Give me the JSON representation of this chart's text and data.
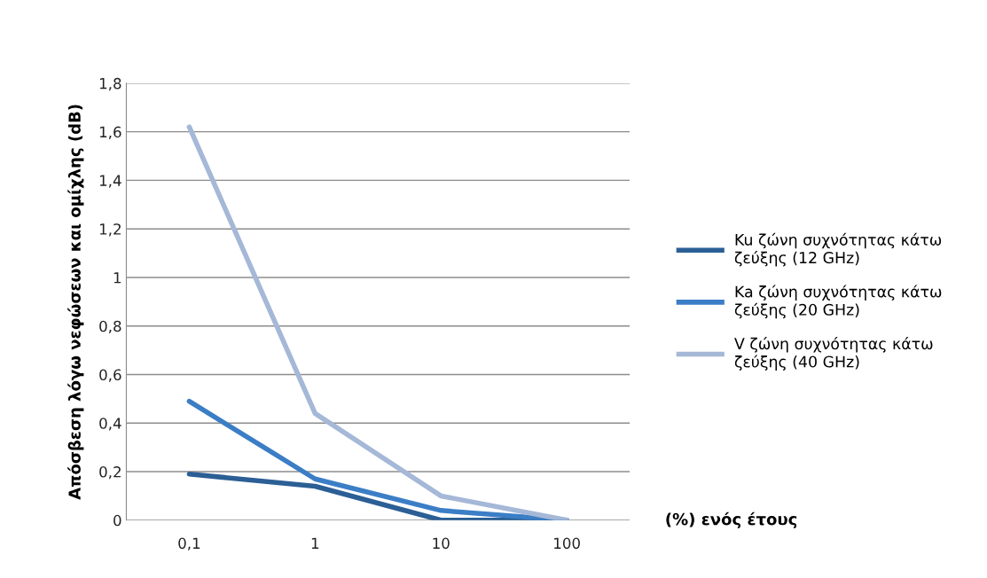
{
  "chart_data": {
    "type": "line",
    "ylabel": "Απόσβεση λόγω νεφώσεων και ομίχλης (dB)",
    "xlabel": "(%) ενός έτους",
    "categories": [
      "0,1",
      "1",
      "10",
      "100"
    ],
    "series": [
      {
        "name": "Ku ζώνη συχνότητας κάτω\nζεύξης (12 GHz)",
        "color": "#2b5f95",
        "values": [
          0.19,
          0.14,
          0,
          0
        ]
      },
      {
        "name": "Ka ζώνη συχνότητας κάτω\nζεύξης (20 GHz)",
        "color": "#3b7ec6",
        "values": [
          0.49,
          0.17,
          0.04,
          0
        ]
      },
      {
        "name": "V ζώνη συχνότητας κάτω\nζεύξης (40 GHz)",
        "color": "#a5b8d7",
        "values": [
          1.62,
          0.44,
          0.1,
          0
        ]
      }
    ],
    "ylim": [
      0,
      1.8
    ],
    "yticks": [
      0,
      {
        "value": 0.2,
        "label": "0,2"
      },
      {
        "value": 0.4,
        "label": "0,4"
      },
      {
        "value": 0.6,
        "label": "0,6"
      },
      {
        "value": 0.8,
        "label": "0,8"
      },
      1,
      {
        "value": 1.2,
        "label": "1,2"
      },
      {
        "value": 1.4,
        "label": "1,4"
      },
      {
        "value": 1.6,
        "label": "1,6"
      },
      {
        "value": 1.8,
        "label": "1,8"
      }
    ],
    "grid": "y",
    "legend": "right",
    "marker": "none",
    "line_style": "solid"
  }
}
